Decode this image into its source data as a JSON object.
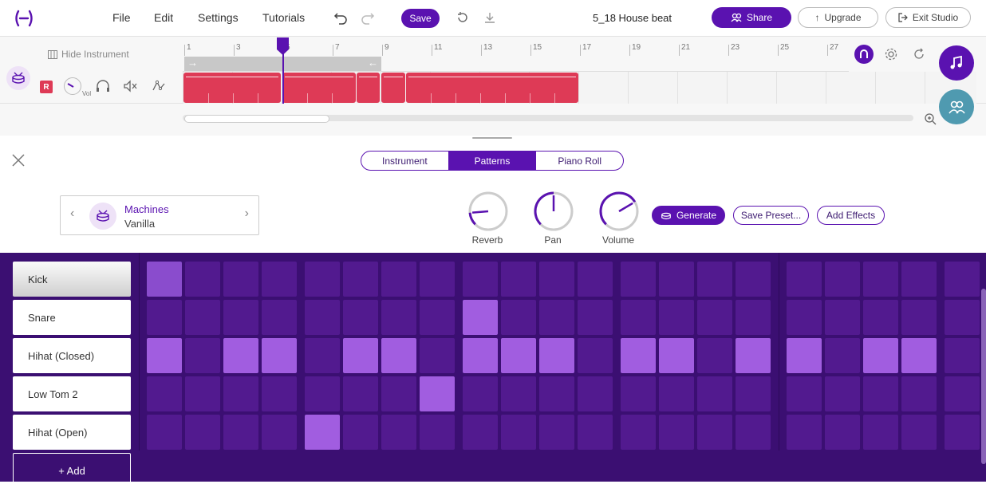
{
  "header": {
    "menu": [
      "File",
      "Edit",
      "Settings",
      "Tutorials"
    ],
    "save_label": "Save",
    "project_title": "5_18 House beat",
    "share_label": "Share",
    "upgrade_label": "Upgrade",
    "exit_label": "Exit Studio"
  },
  "timeline": {
    "hide_instrument_label": "Hide Instrument",
    "ruler_numbers": [
      "1",
      "3",
      "5",
      "7",
      "9",
      "11",
      "13",
      "15",
      "17",
      "19",
      "21",
      "23",
      "25",
      "27"
    ],
    "track": {
      "record_label": "R",
      "volume_label": "Vol"
    }
  },
  "panel": {
    "tabs": [
      "Instrument",
      "Patterns",
      "Piano Roll"
    ],
    "active_tab": "Patterns",
    "kit": {
      "name": "Machines",
      "preset": "Vanilla"
    },
    "knobs": [
      {
        "label": "Reverb",
        "value": 0.15
      },
      {
        "label": "Pan",
        "value": 0.5
      },
      {
        "label": "Volume",
        "value": 0.72
      }
    ],
    "generate_label": "Generate",
    "save_preset_label": "Save Preset...",
    "add_effects_label": "Add Effects"
  },
  "sequencer": {
    "rows": [
      "Kick",
      "Snare",
      "Hihat (Closed)",
      "Low Tom 2",
      "Hihat (Open)"
    ],
    "active_row": "Kick",
    "add_label": "+ Add",
    "pattern": [
      [
        1,
        0,
        0,
        0,
        0,
        0,
        0,
        0,
        0,
        0,
        0,
        0,
        0,
        0,
        0,
        0,
        0,
        0,
        0,
        0,
        0
      ],
      [
        0,
        0,
        0,
        0,
        0,
        0,
        0,
        0,
        1,
        0,
        0,
        0,
        0,
        0,
        0,
        0,
        0,
        0,
        0,
        0,
        0
      ],
      [
        1,
        0,
        1,
        1,
        0,
        1,
        1,
        0,
        1,
        1,
        1,
        0,
        1,
        1,
        0,
        1,
        1,
        0,
        1,
        1,
        0
      ],
      [
        0,
        0,
        0,
        0,
        0,
        0,
        0,
        1,
        0,
        0,
        0,
        0,
        0,
        0,
        0,
        0,
        0,
        0,
        0,
        0,
        0
      ],
      [
        0,
        0,
        0,
        0,
        1,
        0,
        0,
        0,
        0,
        0,
        0,
        0,
        0,
        0,
        0,
        0,
        0,
        0,
        0,
        0,
        0
      ]
    ]
  },
  "colors": {
    "accent": "#5a12b0",
    "clip": "#de3a56",
    "cell_on": "#a15de0",
    "cell_off": "#521a8f",
    "seq_bg": "#3b0f72"
  }
}
